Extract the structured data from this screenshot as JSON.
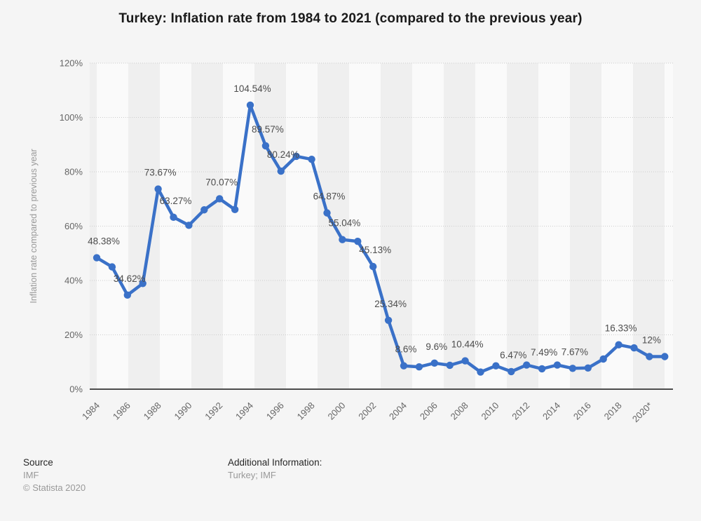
{
  "title": "Turkey: Inflation rate from 1984 to 2021 (compared to the previous year)",
  "chart_data": {
    "type": "line",
    "title": "Turkey: Inflation rate from 1984 to 2021 (compared to the previous year)",
    "xlabel": "",
    "ylabel": "Inflation rate compared to previous year",
    "ylim": [
      0,
      120
    ],
    "yticks": [
      0,
      20,
      40,
      60,
      80,
      100,
      120
    ],
    "ytick_suffix": "%",
    "grid": true,
    "legend_position": "none",
    "x": [
      1984,
      1985,
      1986,
      1987,
      1988,
      1989,
      1990,
      1991,
      1992,
      1993,
      1994,
      1995,
      1996,
      1997,
      1998,
      1999,
      2000,
      2001,
      2002,
      2003,
      2004,
      2005,
      2006,
      2007,
      2008,
      2009,
      2010,
      2011,
      2012,
      2013,
      2014,
      2015,
      2016,
      2017,
      2018,
      2019,
      2020,
      2021
    ],
    "xtick_labels": [
      "1984",
      "1986",
      "1988",
      "1990",
      "1992",
      "1994",
      "1996",
      "1998",
      "2000",
      "2002",
      "2004",
      "2006",
      "2008",
      "2010",
      "2012",
      "2014",
      "2016",
      "2018",
      "2020*"
    ],
    "series": [
      {
        "name": "Inflation rate compared to previous year",
        "values": [
          48.38,
          45.0,
          34.62,
          38.9,
          73.67,
          63.27,
          60.3,
          66.0,
          70.07,
          66.1,
          104.54,
          89.57,
          80.24,
          85.7,
          84.6,
          64.87,
          55.04,
          54.4,
          45.13,
          25.34,
          8.6,
          8.2,
          9.6,
          8.8,
          10.44,
          6.3,
          8.6,
          6.47,
          8.9,
          7.49,
          8.9,
          7.67,
          7.8,
          11.1,
          16.33,
          15.2,
          12,
          12
        ]
      }
    ],
    "point_labels": [
      "48.38%",
      null,
      "34.62%",
      null,
      "73.67%",
      "63.27%",
      null,
      null,
      "70.07%",
      null,
      "104.54%",
      "89.57%",
      "80.24%",
      null,
      null,
      "64.87%",
      "55.04%",
      null,
      "45.13%",
      "25.34%",
      "8.6%",
      null,
      "9.6%",
      null,
      "10.44%",
      null,
      null,
      "6.47%",
      null,
      "7.49%",
      null,
      "7.67%",
      null,
      null,
      "16.33%",
      null,
      "12%",
      null
    ]
  },
  "colors": {
    "background": "#f5f5f5",
    "line": "#3a71c8",
    "band_light": "#fafafa",
    "band_dark": "#efefef",
    "grid": "#cccccc",
    "axis": "#4d4d4d",
    "tick_text": "#666666",
    "point_label_text": "#4d4d4d",
    "axis_title_text": "#999999"
  },
  "footer": {
    "source_label": "Source",
    "source_value": "IMF",
    "copyright": "© Statista 2020",
    "additional_label": "Additional Information:",
    "additional_value": "Turkey; IMF"
  }
}
